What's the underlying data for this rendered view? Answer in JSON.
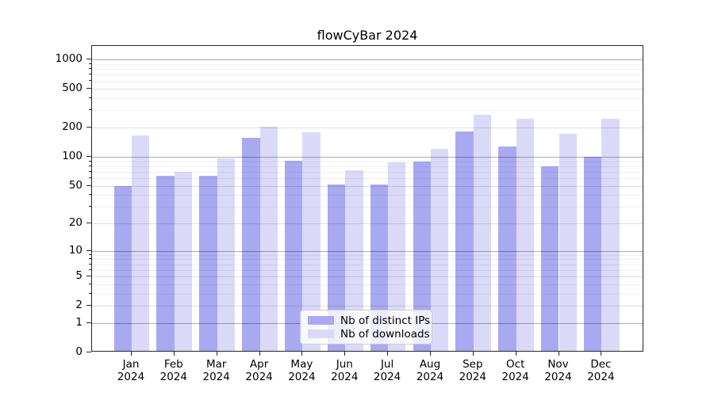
{
  "chart_data": {
    "type": "bar",
    "title": "flowCyBar 2024",
    "categories": [
      "Jan 2024",
      "Feb 2024",
      "Mar 2024",
      "Apr 2024",
      "May 2024",
      "Jun 2024",
      "Jul 2024",
      "Aug 2024",
      "Sep 2024",
      "Oct 2024",
      "Nov 2024",
      "Dec 2024"
    ],
    "series": [
      {
        "name": "Nb of distinct IPs",
        "color": "#a9a9f1",
        "values": [
          48,
          61,
          61,
          150,
          87,
          50,
          50,
          86,
          175,
          124,
          77,
          96
        ]
      },
      {
        "name": "Nb of downloads",
        "color": "#dadaf8",
        "values": [
          160,
          67,
          93,
          195,
          172,
          70,
          84,
          116,
          260,
          238,
          165,
          236
        ]
      }
    ],
    "xlabel": "",
    "ylabel": "",
    "yscale": "log1p",
    "yticks": [
      0,
      1,
      2,
      5,
      10,
      20,
      50,
      100,
      200,
      500,
      1000
    ],
    "ylim": [
      0,
      1380
    ],
    "grid": true,
    "legend_position": "lower-center"
  }
}
